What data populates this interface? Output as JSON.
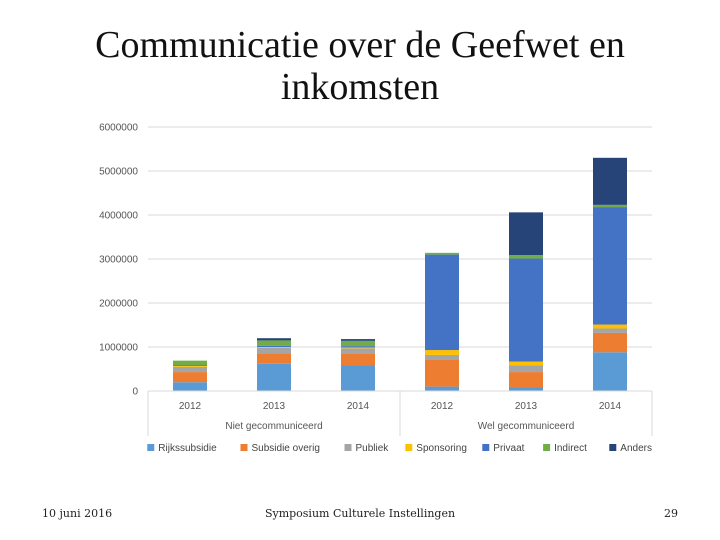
{
  "slide": {
    "title_line1": "Communicatie over de Geefwet en",
    "title_line2": "inkomsten",
    "footer_date": "10 juni 2016",
    "footer_center": "Symposium Culturele Instellingen",
    "page_number": "29"
  },
  "chart_data": {
    "type": "bar",
    "stacked": true,
    "title": "",
    "ylim": [
      0,
      6000000
    ],
    "yticks": [
      0,
      1000000,
      2000000,
      3000000,
      4000000,
      5000000,
      6000000
    ],
    "ytick_labels": [
      "0",
      "1000000",
      "2000000",
      "3000000",
      "4000000",
      "5000000",
      "6000000"
    ],
    "categories": [
      "2012",
      "2013",
      "2014",
      "2012",
      "2013",
      "2014"
    ],
    "groups": [
      {
        "label": "Niet gecommuniceerd",
        "start": 0,
        "end": 2
      },
      {
        "label": "Wel gecommuniceerd",
        "start": 3,
        "end": 5
      }
    ],
    "series": [
      {
        "name": "Rijkssubsidie",
        "color": "#5b9bd5",
        "values": [
          200000,
          620000,
          580000,
          100000,
          80000,
          880000
        ]
      },
      {
        "name": "Subsidie overig",
        "color": "#ed7d31",
        "values": [
          230000,
          240000,
          270000,
          620000,
          350000,
          440000
        ]
      },
      {
        "name": "Publiek",
        "color": "#a5a5a5",
        "values": [
          120000,
          120000,
          120000,
          100000,
          150000,
          100000
        ]
      },
      {
        "name": "Sponsoring",
        "color": "#ffc000",
        "values": [
          20000,
          20000,
          20000,
          110000,
          90000,
          90000
        ]
      },
      {
        "name": "Privaat",
        "color": "#4472c4",
        "values": [
          20000,
          30000,
          30000,
          2170000,
          2340000,
          2670000
        ]
      },
      {
        "name": "Indirect",
        "color": "#70ad47",
        "values": [
          100000,
          120000,
          120000,
          40000,
          80000,
          50000
        ]
      },
      {
        "name": "Anders",
        "color": "#264478",
        "values": [
          0,
          50000,
          40000,
          0,
          970000,
          1070000
        ]
      }
    ]
  }
}
